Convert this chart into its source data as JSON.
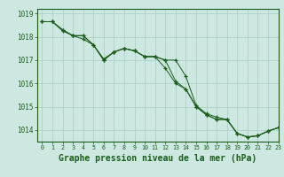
{
  "background_color": "#cce8e0",
  "grid_color": "#a8ccc4",
  "line_color": "#1a5c1a",
  "marker_color": "#1a5c1a",
  "xlabel": "Graphe pression niveau de la mer (hPa)",
  "xlabel_fontsize": 7.0,
  "ylim": [
    1013.5,
    1019.2
  ],
  "xlim": [
    -0.5,
    23
  ],
  "yticks": [
    1014,
    1015,
    1016,
    1017,
    1018,
    1019
  ],
  "xticks": [
    0,
    1,
    2,
    3,
    4,
    5,
    6,
    7,
    8,
    9,
    10,
    11,
    12,
    13,
    14,
    15,
    16,
    17,
    18,
    19,
    20,
    21,
    22,
    23
  ],
  "series1": [
    1018.65,
    1018.65,
    1018.3,
    1018.05,
    1018.05,
    1017.65,
    1017.0,
    1017.35,
    1017.5,
    1017.4,
    1017.15,
    1017.15,
    1017.0,
    1017.0,
    1016.3,
    1015.05,
    1014.7,
    1014.55,
    1014.45,
    1013.85,
    1013.7,
    1013.75,
    1013.95,
    1014.1
  ],
  "series2": [
    1018.65,
    1018.65,
    1018.3,
    1018.05,
    1018.05,
    1017.65,
    1017.0,
    1017.35,
    1017.5,
    1017.4,
    1017.15,
    1017.15,
    1016.65,
    1016.0,
    1015.75,
    1015.0,
    1014.65,
    1014.45,
    1014.45,
    1013.85,
    1013.7,
    1013.75,
    1013.95,
    1014.1
  ],
  "series3": [
    1018.65,
    1018.65,
    1018.25,
    1018.05,
    1017.9,
    1017.65,
    1017.05,
    1017.35,
    1017.5,
    1017.4,
    1017.15,
    1017.15,
    1017.0,
    1016.1,
    1015.75,
    1015.0,
    1014.65,
    1014.45,
    1014.45,
    1013.85,
    1013.7,
    1013.75,
    1013.95,
    1014.1
  ]
}
